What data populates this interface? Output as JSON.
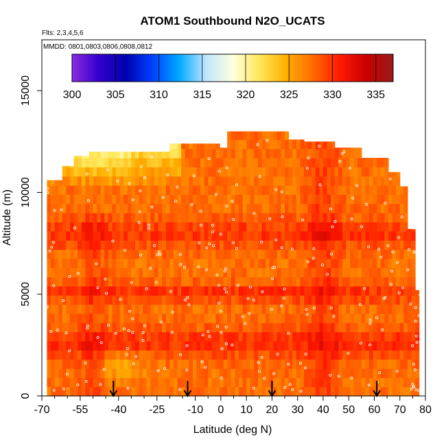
{
  "chart_data": {
    "type": "heatmap",
    "title": "ATOM1 Southbound N2O_UCATS",
    "flights_label": "Flts: 2,3,4,5,6",
    "dates_label": "MMDD: 0801,0803,0806,0808,0812",
    "xlabel": "Latitude (deg N)",
    "ylabel": "Altitude (m)",
    "xlim": [
      -70,
      80
    ],
    "ylim": [
      0,
      17500
    ],
    "x_ticks": [
      -70,
      -55,
      -40,
      -25,
      -10,
      0,
      10,
      20,
      30,
      40,
      50,
      60,
      70,
      80
    ],
    "x_tick_labels": [
      "-70",
      "-55",
      "-40",
      "-25",
      "-10",
      "0",
      "10",
      "20",
      "30",
      "40",
      "50",
      "60",
      "70",
      "80"
    ],
    "x_minor_ticks": [
      -65,
      -60,
      -50,
      -45,
      -35,
      -30,
      -20,
      -15,
      -5,
      5,
      15,
      25,
      35,
      45,
      55,
      65,
      75
    ],
    "y_ticks": [
      0,
      5000,
      10000,
      15000
    ],
    "y_tick_labels": [
      "0",
      "5000",
      "10000",
      "15000"
    ],
    "colorbar": {
      "range": [
        300,
        337
      ],
      "ticks": [
        300,
        305,
        310,
        315,
        320,
        325,
        330,
        335
      ],
      "tick_labels": [
        "300",
        "305",
        "310",
        "315",
        "320",
        "325",
        "330",
        "335"
      ],
      "colors": [
        "#8a2be2",
        "#3300cc",
        "#0000b0",
        "#0040ff",
        "#00a8ff",
        "#bfe6ff",
        "#ffffe0",
        "#ffe85a",
        "#ffb000",
        "#ff6a00",
        "#ff1a00",
        "#c80000",
        "#9c1a1a"
      ]
    },
    "profile_latitudes": [
      -42,
      -13,
      20,
      61
    ],
    "summary": "Curtain of N2O mixing ratio (ppb) from about 70S to 78N and 0 to 13000 m; mostly 325-333 ppb, higher values (330-334) in bands near 2000-3000 m, 5000 m and 7500-8500 m, lower values (312-320) near 11000-12000 m south of -15 deg."
  }
}
